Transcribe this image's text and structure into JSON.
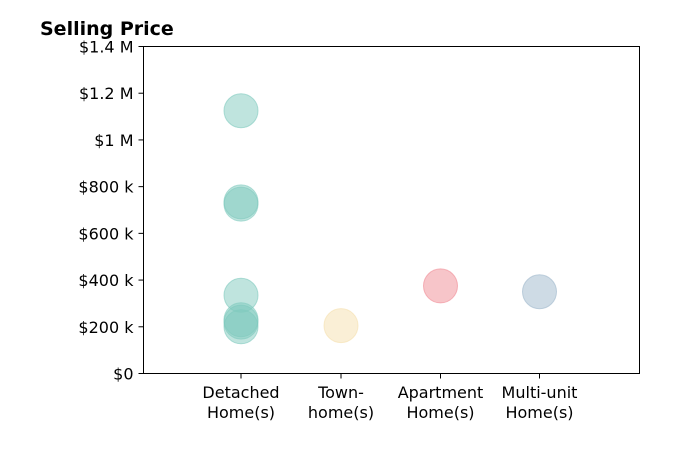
{
  "chart_data": {
    "type": "scatter",
    "title": "Selling Price",
    "xlabel": "",
    "ylabel": "",
    "categories": [
      [
        "Detached",
        "Home(s)"
      ],
      [
        "Town-",
        "home(s)"
      ],
      [
        "Apartment",
        "Home(s)"
      ],
      [
        "Multi-unit",
        "Home(s)"
      ]
    ],
    "ylim": [
      0,
      1400000
    ],
    "yticks": [
      0,
      200000,
      400000,
      600000,
      800000,
      1000000,
      1200000,
      1400000
    ],
    "ytick_labels": [
      "$0",
      "$200 k",
      "$400 k",
      "$600 k",
      "$800 k",
      "$1 M",
      "$1.2 M",
      "$1.4 M"
    ],
    "grid": false,
    "legend": "none",
    "colors": {
      "Detached Home(s)": "#7fcabe",
      "Town-home(s)": "#f5dfae",
      "Apartment Home(s)": "#f08b94",
      "Multi-unit Home(s)": "#9eb8cc"
    },
    "points": [
      {
        "category": 0,
        "value": 1125000
      },
      {
        "category": 0,
        "value": 735000
      },
      {
        "category": 0,
        "value": 725000
      },
      {
        "category": 0,
        "value": 335000
      },
      {
        "category": 0,
        "value": 230000
      },
      {
        "category": 0,
        "value": 220000
      },
      {
        "category": 0,
        "value": 200000
      },
      {
        "category": 1,
        "value": 205000
      },
      {
        "category": 2,
        "value": 375000
      },
      {
        "category": 3,
        "value": 350000
      }
    ]
  }
}
